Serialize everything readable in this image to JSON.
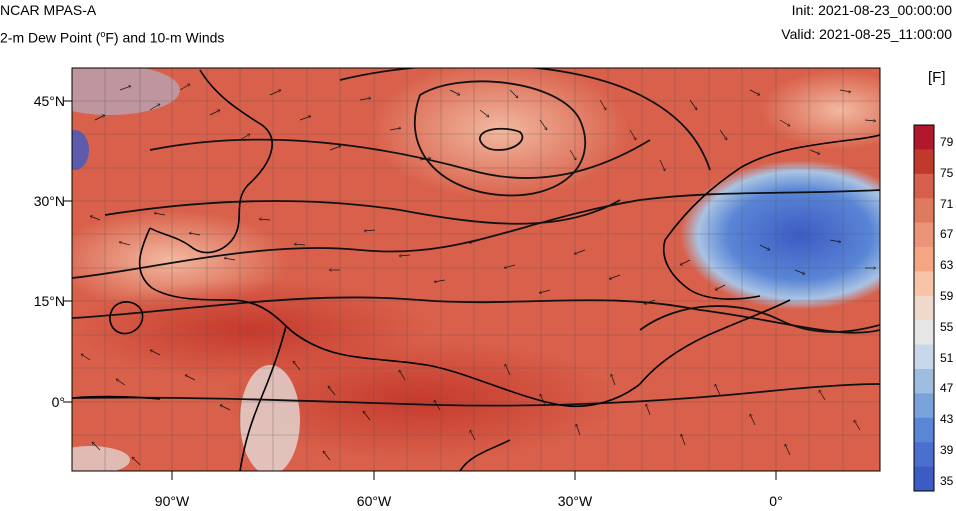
{
  "header": {
    "model": "NCAR MPAS-A",
    "field": "2-m Dew Point (",
    "field_sup": "o",
    "field_rest": "F) and 10-m Winds",
    "init": "Init: 2021-08-23_00:00:00",
    "valid": "Valid: 2021-08-25_11:00:00"
  },
  "axes": {
    "lat_ticks": [
      "45°N",
      "30°N",
      "15°N",
      "0°"
    ],
    "lon_ticks": [
      "90°W",
      "60°W",
      "30°W",
      "0°"
    ]
  },
  "colorbar": {
    "unit": "[F]",
    "labels": [
      "79",
      "75",
      "71",
      "67",
      "63",
      "59",
      "55",
      "51",
      "47",
      "43",
      "39",
      "35"
    ],
    "colors": [
      "#b2182b",
      "#c0392b",
      "#d6604d",
      "#e07a5f",
      "#ec9478",
      "#f4a582",
      "#f7c4a8",
      "#f0d8cc",
      "#e6e6e6",
      "#c9d7ea",
      "#9ebee0",
      "#7aa2db",
      "#5a86d6",
      "#4a6fce",
      "#3d5bc4"
    ]
  },
  "colors": {
    "warm": "#d9604a",
    "warm_light": "#ea8e74",
    "cool": "#4a6fce",
    "neutral": "#e4e1e0"
  }
}
